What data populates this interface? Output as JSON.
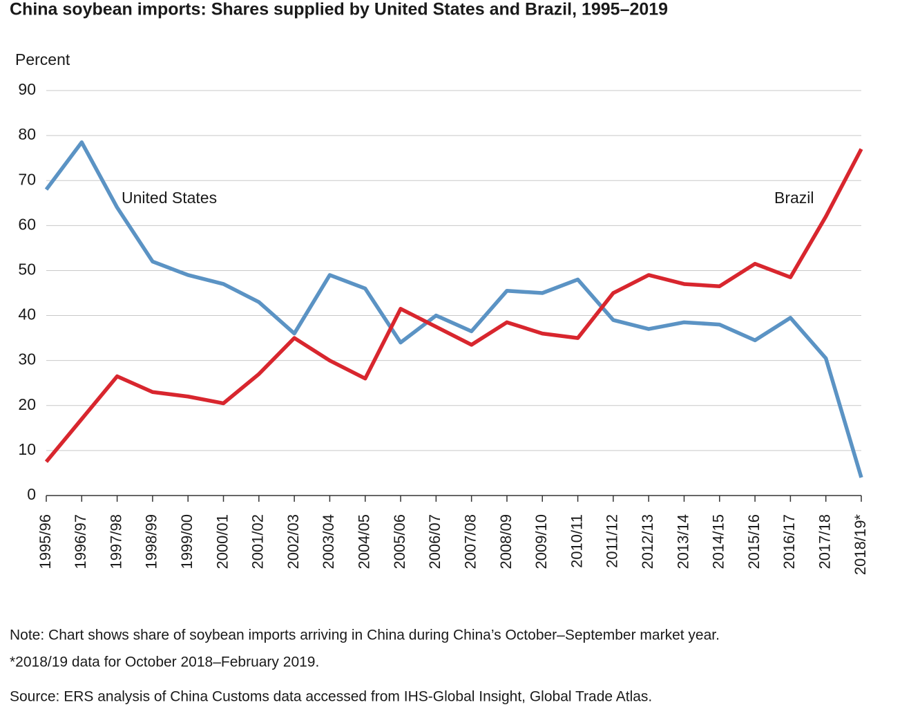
{
  "chart_data": {
    "type": "line",
    "title": "China soybean imports: Shares supplied by United States and Brazil, 1995–2019",
    "y_label": "Percent",
    "categories": [
      "1995/96",
      "1996/97",
      "1997/98",
      "1998/99",
      "1999/00",
      "2000/01",
      "2001/02",
      "2002/03",
      "2003/04",
      "2004/05",
      "2005/06",
      "2006/07",
      "2007/08",
      "2008/09",
      "2009/10",
      "2010/11",
      "2011/12",
      "2012/13",
      "2013/14",
      "2014/15",
      "2015/16",
      "2016/17",
      "2017/18",
      "2018/19*"
    ],
    "series": [
      {
        "name": "United States",
        "color": "#5b93c4",
        "values": [
          68,
          78.5,
          64,
          52,
          49,
          47,
          43,
          36,
          49,
          46,
          34,
          40,
          36.5,
          45.5,
          45,
          48,
          39,
          37,
          38.5,
          38,
          34.5,
          39.5,
          30.5,
          4
        ]
      },
      {
        "name": "Brazil",
        "color": "#d8262e",
        "values": [
          7.5,
          17,
          26.5,
          23,
          22,
          20.5,
          27,
          35,
          30,
          26,
          41.5,
          37.5,
          33.5,
          38.5,
          36,
          35,
          45,
          49,
          47,
          46.5,
          51.5,
          48.5,
          62,
          77
        ]
      }
    ],
    "ylim": [
      0,
      90
    ],
    "yticks": [
      0,
      10,
      20,
      30,
      40,
      50,
      60,
      70,
      80,
      90
    ],
    "grid": true,
    "notes": [
      "Note: Chart shows share of soybean imports arriving in China during China’s October–September market year.",
      "*2018/19 data for October 2018–February 2019.",
      "Source: ERS analysis of China Customs data accessed from IHS-Global Insight, Global Trade Atlas."
    ]
  }
}
